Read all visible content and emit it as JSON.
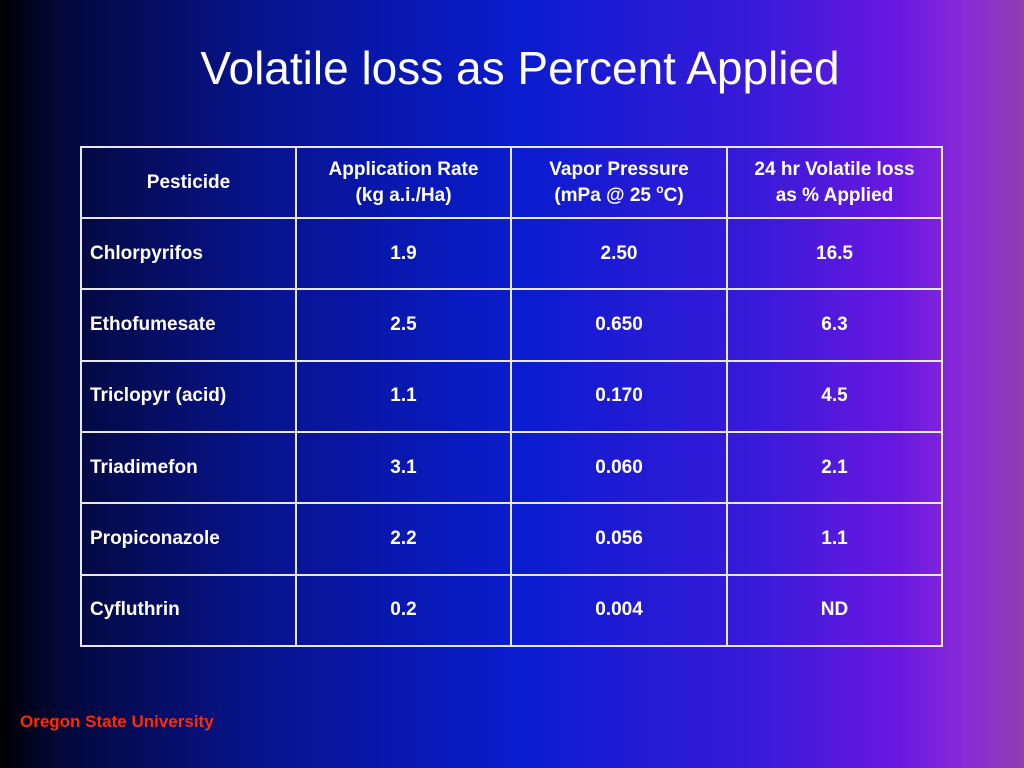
{
  "slide": {
    "title": "Volatile loss as Percent Applied",
    "footer": "Oregon State University"
  },
  "table": {
    "headers": {
      "pesticide": "Pesticide",
      "app_rate_line1": "Application Rate",
      "app_rate_line2": "(kg a.i./Ha)",
      "vapor_line1": "Vapor Pressure",
      "vapor_line2_pre": "(mPa @ 25 ",
      "vapor_degree": "o",
      "vapor_line2_post": "C)",
      "loss_line1": "24 hr Volatile loss",
      "loss_line2": "as % Applied"
    },
    "rows": [
      {
        "pesticide": "Chlorpyrifos",
        "rate": "1.9",
        "vapor": "2.50",
        "loss": "16.5"
      },
      {
        "pesticide": "Ethofumesate",
        "rate": "2.5",
        "vapor": "0.650",
        "loss": "6.3"
      },
      {
        "pesticide": "Triclopyr (acid)",
        "rate": "1.1",
        "vapor": "0.170",
        "loss": "4.5"
      },
      {
        "pesticide": "Triadimefon",
        "rate": "3.1",
        "vapor": "0.060",
        "loss": "2.1"
      },
      {
        "pesticide": "Propiconazole",
        "rate": "2.2",
        "vapor": "0.056",
        "loss": "1.1"
      },
      {
        "pesticide": "Cyfluthrin",
        "rate": "0.2",
        "vapor": "0.004",
        "loss": "ND"
      }
    ]
  },
  "colors": {
    "text": "#ffffff",
    "footer": "#ff2a00",
    "grid": "#e8e8e8"
  }
}
